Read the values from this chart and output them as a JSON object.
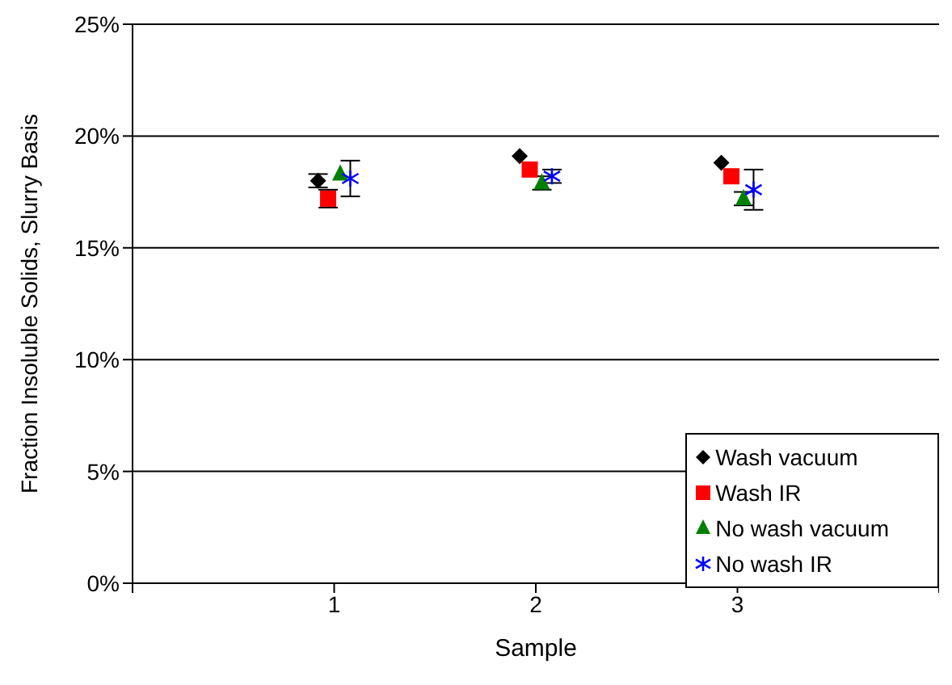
{
  "chart_data": {
    "type": "scatter",
    "xlabel": "Sample",
    "ylabel": "Fraction Insoluble Solids, Slurry Basis",
    "xlim": [
      0,
      4
    ],
    "xticks": [
      {
        "value": 0,
        "label": null
      },
      1,
      2,
      3,
      {
        "value": 4,
        "label": null
      }
    ],
    "ylim": [
      0,
      25
    ],
    "yticks": [
      {
        "value": 0,
        "label": "0%"
      },
      {
        "value": 5,
        "label": "5%"
      },
      {
        "value": 10,
        "label": "10%"
      },
      {
        "value": 15,
        "label": "15%"
      },
      {
        "value": 20,
        "label": "20%"
      },
      {
        "value": 25,
        "label": "25%"
      }
    ],
    "grid": "y",
    "legend": "bottom right",
    "series": [
      {
        "name": "Wash vacuum",
        "color": "#000000",
        "marker": "diamond",
        "x": [
          0.92,
          1.92,
          2.92
        ],
        "values": [
          18.0,
          19.1,
          18.8
        ],
        "errors": [
          0.3,
          null,
          null
        ]
      },
      {
        "name": "Wash IR",
        "color": "#ff0000",
        "marker": "square",
        "x": [
          0.97,
          1.97,
          2.97
        ],
        "values": [
          17.2,
          18.5,
          18.2
        ],
        "errors": [
          0.4,
          null,
          null
        ]
      },
      {
        "name": "No wash vacuum",
        "color": "#008000",
        "marker": "triangle",
        "x": [
          1.03,
          2.03,
          3.03
        ],
        "values": [
          18.3,
          17.9,
          17.2
        ],
        "errors": [
          null,
          0.3,
          0.3
        ]
      },
      {
        "name": "No wash IR",
        "color": "#0000ff",
        "marker": "cross",
        "x": [
          1.08,
          2.08,
          3.08
        ],
        "values": [
          18.1,
          18.2,
          17.6
        ],
        "errors": [
          0.8,
          0.3,
          0.9
        ]
      }
    ]
  }
}
